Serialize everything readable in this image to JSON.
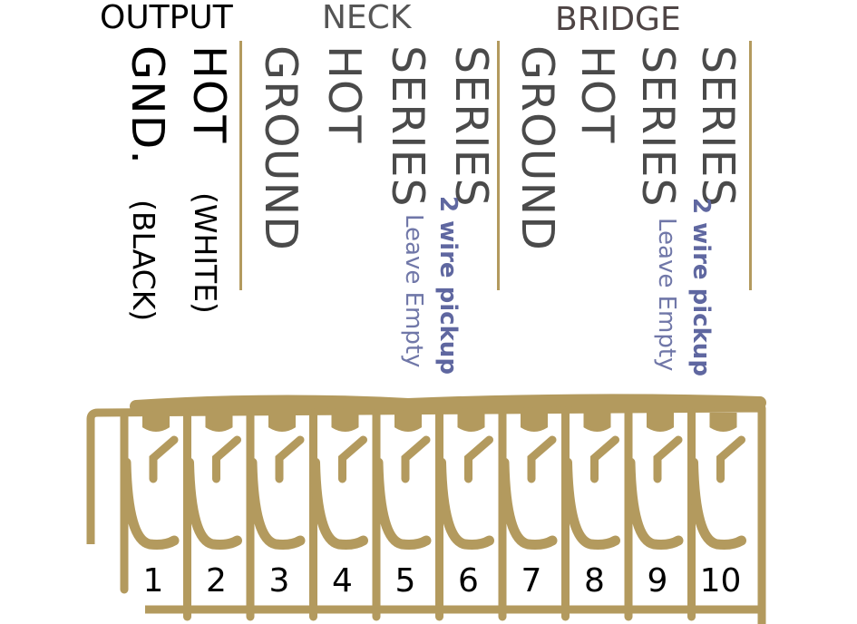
{
  "headers": {
    "output": "OUTPUT",
    "neck": "NECK",
    "bridge": "BRIDGE"
  },
  "output": {
    "gnd": "GND.",
    "gnd_color": "(BLACK)",
    "hot": "HOT",
    "hot_color": "(WHITE)"
  },
  "neck": {
    "ground": "GROUND",
    "hot": "HOT",
    "series1": "SERIES",
    "series1_note": "Leave Empty",
    "series2": "SERIES",
    "series2_note": "2 wire pickup"
  },
  "bridge": {
    "ground": "GROUND",
    "hot": "HOT",
    "series1": "SERIES",
    "series1_note": "Leave Empty",
    "series2": "SERIES",
    "series2_note": "2 wire pickup"
  },
  "terminals": [
    "1",
    "2",
    "3",
    "4",
    "5",
    "6",
    "7",
    "8",
    "9",
    "10"
  ],
  "colors": {
    "gold": "#b39a5e",
    "note_blue": "#6d74a6",
    "label_gray": "#4a4a4a",
    "bridge_header": "#4e4444"
  }
}
